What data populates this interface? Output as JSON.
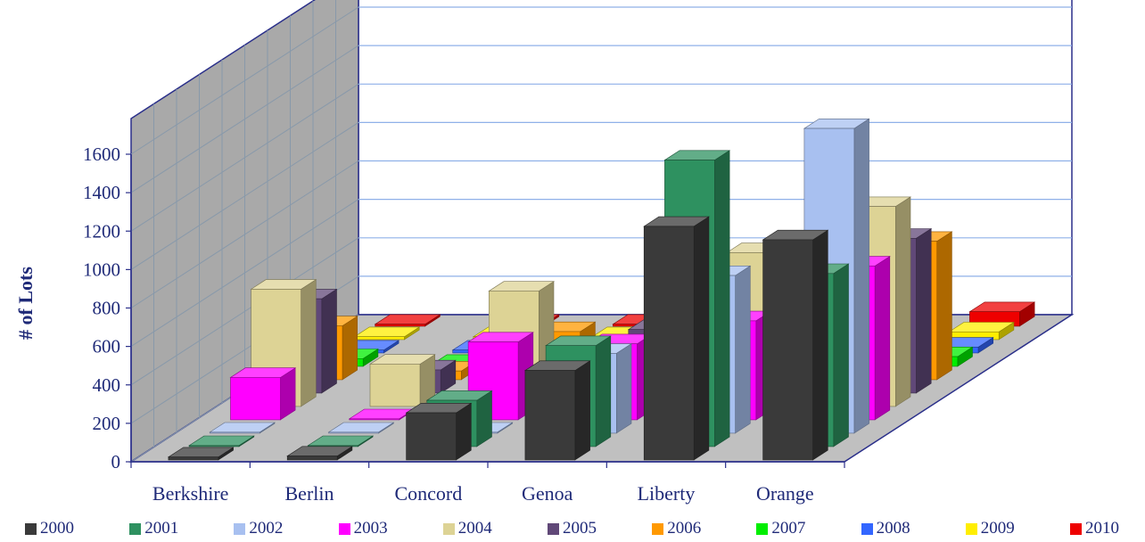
{
  "chart_data": {
    "type": "bar",
    "title": "",
    "xlabel": "",
    "ylabel": "# of Lots",
    "ylim": [
      0,
      1600
    ],
    "yticks": [
      0,
      200,
      400,
      600,
      800,
      1000,
      1200,
      1400,
      1600
    ],
    "categories": [
      "Berkshire",
      "Berlin",
      "Concord",
      "Genoa",
      "Liberty",
      "Orange"
    ],
    "legend_position": "bottom",
    "three_d": true,
    "series": [
      {
        "name": "2000",
        "color": "#3a3a3a",
        "values": [
          15,
          20,
          245,
          465,
          1215,
          1145
        ]
      },
      {
        "name": "2001",
        "color": "#2e9160",
        "values": [
          5,
          5,
          240,
          525,
          1490,
          900
        ]
      },
      {
        "name": "2002",
        "color": "#a8c0f0",
        "values": [
          5,
          5,
          5,
          415,
          820,
          1585
        ]
      },
      {
        "name": "2003",
        "color": "#ff00ff",
        "values": [
          220,
          5,
          405,
          395,
          515,
          800
        ]
      },
      {
        "name": "2004",
        "color": "#ddd395",
        "values": [
          610,
          220,
          600,
          5,
          800,
          1040
        ]
      },
      {
        "name": "2005",
        "color": "#604878",
        "values": [
          490,
          120,
          210,
          330,
          280,
          805
        ]
      },
      {
        "name": "2006",
        "color": "#ff9900",
        "values": [
          280,
          45,
          250,
          175,
          350,
          720
        ]
      },
      {
        "name": "2007",
        "color": "#00ee00",
        "values": [
          40,
          10,
          50,
          70,
          140,
          50
        ]
      },
      {
        "name": "2008",
        "color": "#3366ff",
        "values": [
          15,
          15,
          15,
          20,
          80,
          30
        ]
      },
      {
        "name": "2009",
        "color": "#ffee00",
        "values": [
          15,
          15,
          15,
          15,
          30,
          40
        ]
      },
      {
        "name": "2010",
        "color": "#ee0000",
        "values": [
          10,
          10,
          10,
          65,
          35,
          75
        ]
      }
    ]
  }
}
